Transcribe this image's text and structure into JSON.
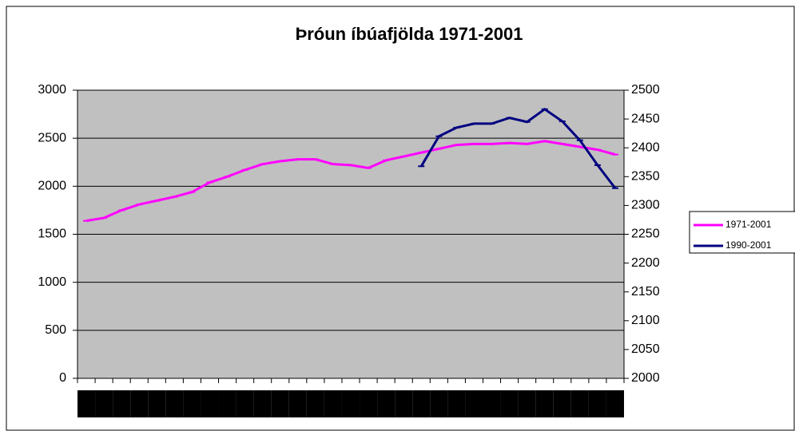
{
  "chart_data": {
    "type": "line",
    "title": "Þróun íbúafjölda 1971-2001",
    "categories": [
      null,
      null,
      null,
      null,
      null,
      null,
      null,
      null,
      null,
      null,
      null,
      null,
      null,
      null,
      null,
      null,
      null,
      null,
      null,
      null,
      null,
      null,
      null,
      null,
      null,
      null,
      null,
      null,
      null,
      null,
      null
    ],
    "series": [
      {
        "name": "1971-2001",
        "color": "#ff00ff",
        "axis": "y",
        "values": [
          1640,
          1670,
          1750,
          1810,
          1850,
          1890,
          1940,
          2040,
          2100,
          2170,
          2230,
          2260,
          2280,
          2280,
          2230,
          2220,
          2190,
          2270,
          2310,
          2350,
          2390,
          2430,
          2440,
          2440,
          2450,
          2440,
          2470,
          2440,
          2410,
          2380,
          2330
        ]
      },
      {
        "name": "1990-2001",
        "color": "#000080",
        "axis": "y2",
        "values": [
          null,
          null,
          null,
          null,
          null,
          null,
          null,
          null,
          null,
          null,
          null,
          null,
          null,
          null,
          null,
          null,
          null,
          null,
          null,
          2368,
          2420,
          2435,
          2442,
          2442,
          2452,
          2445,
          2467,
          2446,
          2413,
          2370,
          2330
        ]
      }
    ],
    "ylim": [
      0,
      3000
    ],
    "yticks": [
      0,
      500,
      1000,
      1500,
      2000,
      2500,
      3000
    ],
    "y2lim": [
      2000,
      2500
    ],
    "y2ticks": [
      2000,
      2050,
      2100,
      2150,
      2200,
      2250,
      2300,
      2350,
      2400,
      2450,
      2500
    ],
    "grid": true,
    "legend": "right",
    "plot_color": "#c0c0c0"
  }
}
